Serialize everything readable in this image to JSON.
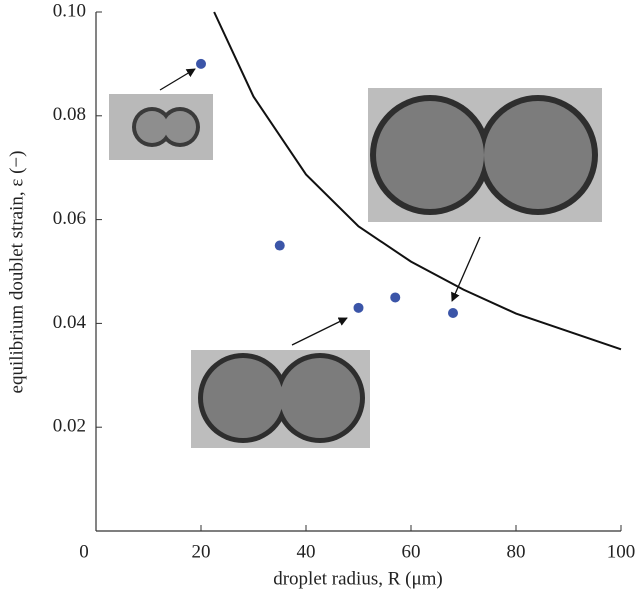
{
  "chart_data": {
    "type": "scatter",
    "x_label": "droplet radius, R (μm)",
    "y_label": "equilibrium doublet strain, ε (−)",
    "xlim": [
      0,
      100
    ],
    "xticks": [
      0,
      20,
      40,
      60,
      80,
      100
    ],
    "ylim": [
      0,
      0.1
    ],
    "yticks": [
      0.02,
      0.04,
      0.06,
      0.08,
      {
        "value": 0.1,
        "label": "0.10"
      }
    ],
    "series": [
      {
        "style": "line",
        "color": "#111111",
        "x": [
          22.5,
          30,
          40,
          50,
          60,
          70,
          80,
          100
        ],
        "values": [
          0.1,
          0.0837,
          0.0687,
          0.0587,
          0.0519,
          0.0465,
          0.0419,
          0.035
        ]
      },
      {
        "style": "points",
        "color": "#3b55a8",
        "x": [
          20,
          35,
          50,
          57,
          68
        ],
        "values": [
          0.09,
          0.055,
          0.043,
          0.045,
          0.042
        ]
      }
    ]
  }
}
